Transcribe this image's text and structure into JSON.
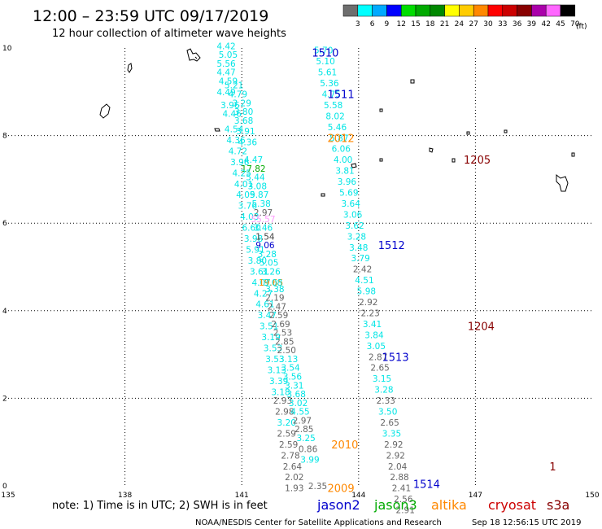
{
  "header": {
    "title": "12:00 – 23:59 UTC 09/17/2019",
    "subtitle": "12 hour collection of altimeter wave heights"
  },
  "colorbar": {
    "colors": [
      "#6e6e6e",
      "#00ffff",
      "#00aaff",
      "#0000ff",
      "#00dd00",
      "#00aa00",
      "#008800",
      "#ffff00",
      "#ffcc00",
      "#ff8800",
      "#ff0000",
      "#cc0000",
      "#880000",
      "#aa00aa",
      "#ff66ff",
      "#000000"
    ],
    "labels": [
      "3",
      "6",
      "9",
      "12",
      "15",
      "18",
      "21",
      "24",
      "27",
      "30",
      "33",
      "36",
      "39",
      "42",
      "45",
      "70"
    ],
    "unit": "(ft)"
  },
  "axes": {
    "x_ticks": [
      "135",
      "138",
      "141",
      "144",
      "147",
      "150"
    ],
    "y_ticks": [
      "0",
      "2",
      "4",
      "6",
      "8",
      "10"
    ],
    "xlim": [
      135,
      150
    ],
    "ylim": [
      0,
      10
    ]
  },
  "passes": [
    {
      "label": "1510",
      "lon": 142.8,
      "lat": 9.9,
      "color": "#0000cc"
    },
    {
      "label": "1511",
      "lon": 143.2,
      "lat": 8.95,
      "color": "#0000cc"
    },
    {
      "label": "2012",
      "lon": 143.2,
      "lat": 7.95,
      "color": "#ff8800"
    },
    {
      "label": "1205",
      "lon": 146.7,
      "lat": 7.45,
      "color": "#880000"
    },
    {
      "label": "1512",
      "lon": 144.5,
      "lat": 5.5,
      "color": "#0000cc"
    },
    {
      "label": "1204",
      "lon": 146.8,
      "lat": 3.65,
      "color": "#880000"
    },
    {
      "label": "1513",
      "lon": 144.6,
      "lat": 2.95,
      "color": "#0000cc"
    },
    {
      "label": "2010",
      "lon": 143.3,
      "lat": 0.95,
      "color": "#ff8800"
    },
    {
      "label": "2009",
      "lon": 143.2,
      "lat": -0.05,
      "color": "#ff8800"
    },
    {
      "label": "1514",
      "lon": 145.4,
      "lat": 0.05,
      "color": "#0000cc"
    },
    {
      "label": "1",
      "lon": 148.9,
      "lat": 0.45,
      "color": "#880000"
    }
  ],
  "wave_heights": [
    {
      "v": "4.42",
      "lon": 140.6,
      "lat": 10.05,
      "c": "#00e5e5"
    },
    {
      "v": "5.05",
      "lon": 140.65,
      "lat": 9.85,
      "c": "#00e5e5"
    },
    {
      "v": "5.56",
      "lon": 140.6,
      "lat": 9.65,
      "c": "#00e5e5"
    },
    {
      "v": "4.47",
      "lon": 140.6,
      "lat": 9.45,
      "c": "#00e5e5"
    },
    {
      "v": "4.59",
      "lon": 140.65,
      "lat": 9.25,
      "c": "#00e5e5"
    },
    {
      "v": "5.21",
      "lon": 140.8,
      "lat": 9.15,
      "c": "#00e5e5"
    },
    {
      "v": "4.49",
      "lon": 140.6,
      "lat": 9.0,
      "c": "#00e5e5"
    },
    {
      "v": "4.79",
      "lon": 140.9,
      "lat": 8.95,
      "c": "#00e5e5"
    },
    {
      "v": "3.96",
      "lon": 140.7,
      "lat": 8.7,
      "c": "#00e5e5"
    },
    {
      "v": "3.29",
      "lon": 141.0,
      "lat": 8.75,
      "c": "#00e5e5"
    },
    {
      "v": "4.46",
      "lon": 140.75,
      "lat": 8.5,
      "c": "#00e5e5"
    },
    {
      "v": "3.80",
      "lon": 141.05,
      "lat": 8.55,
      "c": "#00e5e5"
    },
    {
      "v": "3.68",
      "lon": 141.05,
      "lat": 8.35,
      "c": "#00e5e5"
    },
    {
      "v": "4.54",
      "lon": 140.8,
      "lat": 8.15,
      "c": "#00e5e5"
    },
    {
      "v": "3.91",
      "lon": 141.1,
      "lat": 8.1,
      "c": "#00e5e5"
    },
    {
      "v": "4.36",
      "lon": 140.85,
      "lat": 7.9,
      "c": "#00e5e5"
    },
    {
      "v": "4.36",
      "lon": 141.15,
      "lat": 7.85,
      "c": "#00e5e5"
    },
    {
      "v": "4.72",
      "lon": 140.9,
      "lat": 7.65,
      "c": "#00e5e5"
    },
    {
      "v": "3.96",
      "lon": 140.95,
      "lat": 7.4,
      "c": "#00e5e5"
    },
    {
      "v": "4.47",
      "lon": 141.3,
      "lat": 7.45,
      "c": "#00e5e5"
    },
    {
      "v": "17.82",
      "lon": 141.3,
      "lat": 7.25,
      "c": "#00aa00"
    },
    {
      "v": "4.25",
      "lon": 141.0,
      "lat": 7.15,
      "c": "#00e5e5"
    },
    {
      "v": "5.44",
      "lon": 141.35,
      "lat": 7.05,
      "c": "#00e5e5"
    },
    {
      "v": "4.01",
      "lon": 141.05,
      "lat": 6.9,
      "c": "#00e5e5"
    },
    {
      "v": "3.08",
      "lon": 141.4,
      "lat": 6.85,
      "c": "#00e5e5"
    },
    {
      "v": "4.09",
      "lon": 141.1,
      "lat": 6.65,
      "c": "#00e5e5"
    },
    {
      "v": "5.87",
      "lon": 141.45,
      "lat": 6.65,
      "c": "#00e5e5"
    },
    {
      "v": "3.76",
      "lon": 141.15,
      "lat": 6.4,
      "c": "#00e5e5"
    },
    {
      "v": "5.38",
      "lon": 141.5,
      "lat": 6.45,
      "c": "#00e5e5"
    },
    {
      "v": "2.97",
      "lon": 141.55,
      "lat": 6.25,
      "c": "#666666"
    },
    {
      "v": "4.03",
      "lon": 141.2,
      "lat": 6.15,
      "c": "#00e5e5"
    },
    {
      "v": "55.57",
      "lon": 141.55,
      "lat": 6.1,
      "c": "#ff99ff"
    },
    {
      "v": "6.60",
      "lon": 141.25,
      "lat": 5.9,
      "c": "#00e5e5"
    },
    {
      "v": "3.46",
      "lon": 141.55,
      "lat": 5.9,
      "c": "#00e5e5"
    },
    {
      "v": "3.98",
      "lon": 141.3,
      "lat": 5.65,
      "c": "#00e5e5"
    },
    {
      "v": "1.54",
      "lon": 141.6,
      "lat": 5.7,
      "c": "#444444"
    },
    {
      "v": "9.06",
      "lon": 141.6,
      "lat": 5.5,
      "c": "#0000cc"
    },
    {
      "v": "5.91",
      "lon": 141.35,
      "lat": 5.4,
      "c": "#00e5e5"
    },
    {
      "v": "3.28",
      "lon": 141.65,
      "lat": 5.3,
      "c": "#00e5e5"
    },
    {
      "v": "3.80",
      "lon": 141.4,
      "lat": 5.15,
      "c": "#00e5e5"
    },
    {
      "v": "5.05",
      "lon": 141.7,
      "lat": 5.1,
      "c": "#00e5e5"
    },
    {
      "v": "3.61",
      "lon": 141.45,
      "lat": 4.9,
      "c": "#00e5e5"
    },
    {
      "v": "3.26",
      "lon": 141.75,
      "lat": 4.9,
      "c": "#00e5e5"
    },
    {
      "v": "4.07",
      "lon": 141.5,
      "lat": 4.65,
      "c": "#00e5e5"
    },
    {
      "v": "19.65",
      "lon": 141.75,
      "lat": 4.65,
      "c": "#ff8800"
    },
    {
      "v": "3.08",
      "lon": 141.8,
      "lat": 4.65,
      "c": "#00e5e5"
    },
    {
      "v": "3.38",
      "lon": 141.85,
      "lat": 4.5,
      "c": "#00e5e5"
    },
    {
      "v": "4.27",
      "lon": 141.55,
      "lat": 4.4,
      "c": "#00e5e5"
    },
    {
      "v": "2.19",
      "lon": 141.85,
      "lat": 4.3,
      "c": "#666666"
    },
    {
      "v": "4.61",
      "lon": 141.6,
      "lat": 4.15,
      "c": "#00e5e5"
    },
    {
      "v": "2.47",
      "lon": 141.9,
      "lat": 4.1,
      "c": "#666666"
    },
    {
      "v": "3.47",
      "lon": 141.65,
      "lat": 3.9,
      "c": "#00e5e5"
    },
    {
      "v": "2.59",
      "lon": 141.95,
      "lat": 3.9,
      "c": "#666666"
    },
    {
      "v": "3.51",
      "lon": 141.7,
      "lat": 3.65,
      "c": "#00e5e5"
    },
    {
      "v": "2.69",
      "lon": 142.0,
      "lat": 3.7,
      "c": "#666666"
    },
    {
      "v": "3.19",
      "lon": 141.75,
      "lat": 3.4,
      "c": "#00e5e5"
    },
    {
      "v": "2.53",
      "lon": 142.05,
      "lat": 3.5,
      "c": "#666666"
    },
    {
      "v": "2.85",
      "lon": 142.1,
      "lat": 3.3,
      "c": "#666666"
    },
    {
      "v": "3.53",
      "lon": 141.8,
      "lat": 3.15,
      "c": "#00e5e5"
    },
    {
      "v": "2.50",
      "lon": 142.15,
      "lat": 3.1,
      "c": "#666666"
    },
    {
      "v": "3.53",
      "lon": 141.85,
      "lat": 2.9,
      "c": "#00e5e5"
    },
    {
      "v": "3.13",
      "lon": 142.2,
      "lat": 2.9,
      "c": "#00e5e5"
    },
    {
      "v": "3.13",
      "lon": 141.9,
      "lat": 2.65,
      "c": "#00e5e5"
    },
    {
      "v": "3.54",
      "lon": 142.25,
      "lat": 2.7,
      "c": "#00e5e5"
    },
    {
      "v": "3.39",
      "lon": 141.95,
      "lat": 2.4,
      "c": "#00e5e5"
    },
    {
      "v": "3.56",
      "lon": 142.3,
      "lat": 2.5,
      "c": "#00e5e5"
    },
    {
      "v": "3.31",
      "lon": 142.35,
      "lat": 2.3,
      "c": "#00e5e5"
    },
    {
      "v": "3.18",
      "lon": 142.0,
      "lat": 2.15,
      "c": "#00e5e5"
    },
    {
      "v": "3.68",
      "lon": 142.4,
      "lat": 2.1,
      "c": "#00e5e5"
    },
    {
      "v": "2.93",
      "lon": 142.05,
      "lat": 1.95,
      "c": "#666666"
    },
    {
      "v": "3.02",
      "lon": 142.45,
      "lat": 1.9,
      "c": "#00e5e5"
    },
    {
      "v": "2.98",
      "lon": 142.1,
      "lat": 1.7,
      "c": "#666666"
    },
    {
      "v": "4.55",
      "lon": 142.5,
      "lat": 1.7,
      "c": "#00e5e5"
    },
    {
      "v": "3.20",
      "lon": 142.15,
      "lat": 1.45,
      "c": "#00e5e5"
    },
    {
      "v": "2.97",
      "lon": 142.55,
      "lat": 1.5,
      "c": "#666666"
    },
    {
      "v": "2.59",
      "lon": 142.15,
      "lat": 1.2,
      "c": "#666666"
    },
    {
      "v": "2.85",
      "lon": 142.6,
      "lat": 1.3,
      "c": "#666666"
    },
    {
      "v": "3.25",
      "lon": 142.65,
      "lat": 1.1,
      "c": "#00e5e5"
    },
    {
      "v": "2.59",
      "lon": 142.2,
      "lat": 0.95,
      "c": "#666666"
    },
    {
      "v": "0.86",
      "lon": 142.7,
      "lat": 0.85,
      "c": "#666666"
    },
    {
      "v": "2.78",
      "lon": 142.25,
      "lat": 0.7,
      "c": "#666666"
    },
    {
      "v": "3.99",
      "lon": 142.75,
      "lat": 0.6,
      "c": "#00e5e5"
    },
    {
      "v": "2.64",
      "lon": 142.3,
      "lat": 0.45,
      "c": "#666666"
    },
    {
      "v": "2.02",
      "lon": 142.35,
      "lat": 0.2,
      "c": "#666666"
    },
    {
      "v": "1.93",
      "lon": 142.35,
      "lat": -0.05,
      "c": "#666666"
    },
    {
      "v": "2.35",
      "lon": 142.95,
      "lat": 0.0,
      "c": "#666666"
    },
    {
      "v": "5.70",
      "lon": 143.1,
      "lat": 9.95,
      "c": "#00e5e5"
    },
    {
      "v": "5.10",
      "lon": 143.15,
      "lat": 9.7,
      "c": "#00e5e5"
    },
    {
      "v": "5.61",
      "lon": 143.2,
      "lat": 9.45,
      "c": "#00e5e5"
    },
    {
      "v": "5.36",
      "lon": 143.25,
      "lat": 9.2,
      "c": "#00e5e5"
    },
    {
      "v": "4.75",
      "lon": 143.3,
      "lat": 8.95,
      "c": "#00e5e5"
    },
    {
      "v": "5.58",
      "lon": 143.35,
      "lat": 8.7,
      "c": "#00e5e5"
    },
    {
      "v": "8.02",
      "lon": 143.4,
      "lat": 8.45,
      "c": "#00e5e5"
    },
    {
      "v": "5.46",
      "lon": 143.45,
      "lat": 8.2,
      "c": "#00e5e5"
    },
    {
      "v": "5.87",
      "lon": 143.5,
      "lat": 7.95,
      "c": "#00e5e5"
    },
    {
      "v": "6.06",
      "lon": 143.55,
      "lat": 7.7,
      "c": "#00e5e5"
    },
    {
      "v": "4.00",
      "lon": 143.6,
      "lat": 7.45,
      "c": "#00e5e5"
    },
    {
      "v": "3.81",
      "lon": 143.65,
      "lat": 7.2,
      "c": "#00e5e5"
    },
    {
      "v": "3.96",
      "lon": 143.7,
      "lat": 6.95,
      "c": "#00e5e5"
    },
    {
      "v": "5.69",
      "lon": 143.75,
      "lat": 6.7,
      "c": "#00e5e5"
    },
    {
      "v": "3.64",
      "lon": 143.8,
      "lat": 6.45,
      "c": "#00e5e5"
    },
    {
      "v": "3.06",
      "lon": 143.85,
      "lat": 6.2,
      "c": "#00e5e5"
    },
    {
      "v": "3.62",
      "lon": 143.9,
      "lat": 5.95,
      "c": "#00e5e5"
    },
    {
      "v": "3.28",
      "lon": 143.95,
      "lat": 5.7,
      "c": "#00e5e5"
    },
    {
      "v": "3.48",
      "lon": 144.0,
      "lat": 5.45,
      "c": "#00e5e5"
    },
    {
      "v": "3.79",
      "lon": 144.05,
      "lat": 5.2,
      "c": "#00e5e5"
    },
    {
      "v": "2.42",
      "lon": 144.1,
      "lat": 4.95,
      "c": "#666666"
    },
    {
      "v": "4.51",
      "lon": 144.15,
      "lat": 4.7,
      "c": "#00e5e5"
    },
    {
      "v": "5.98",
      "lon": 144.2,
      "lat": 4.45,
      "c": "#00e5e5"
    },
    {
      "v": "2.92",
      "lon": 144.25,
      "lat": 4.2,
      "c": "#666666"
    },
    {
      "v": "2.23",
      "lon": 144.3,
      "lat": 3.95,
      "c": "#666666"
    },
    {
      "v": "3.41",
      "lon": 144.35,
      "lat": 3.7,
      "c": "#00e5e5"
    },
    {
      "v": "3.84",
      "lon": 144.4,
      "lat": 3.45,
      "c": "#00e5e5"
    },
    {
      "v": "3.05",
      "lon": 144.45,
      "lat": 3.2,
      "c": "#00e5e5"
    },
    {
      "v": "2.87",
      "lon": 144.5,
      "lat": 2.95,
      "c": "#666666"
    },
    {
      "v": "2.65",
      "lon": 144.55,
      "lat": 2.7,
      "c": "#666666"
    },
    {
      "v": "3.15",
      "lon": 144.6,
      "lat": 2.45,
      "c": "#00e5e5"
    },
    {
      "v": "3.28",
      "lon": 144.65,
      "lat": 2.2,
      "c": "#00e5e5"
    },
    {
      "v": "2.33",
      "lon": 144.7,
      "lat": 1.95,
      "c": "#666666"
    },
    {
      "v": "3.50",
      "lon": 144.75,
      "lat": 1.7,
      "c": "#00e5e5"
    },
    {
      "v": "2.65",
      "lon": 144.8,
      "lat": 1.45,
      "c": "#666666"
    },
    {
      "v": "3.35",
      "lon": 144.85,
      "lat": 1.2,
      "c": "#00e5e5"
    },
    {
      "v": "2.92",
      "lon": 144.9,
      "lat": 0.95,
      "c": "#666666"
    },
    {
      "v": "2.92",
      "lon": 144.95,
      "lat": 0.7,
      "c": "#666666"
    },
    {
      "v": "2.04",
      "lon": 145.0,
      "lat": 0.45,
      "c": "#666666"
    },
    {
      "v": "2.88",
      "lon": 145.05,
      "lat": 0.2,
      "c": "#666666"
    },
    {
      "v": "2.41",
      "lon": 145.1,
      "lat": -0.05,
      "c": "#666666"
    },
    {
      "v": "2.56",
      "lon": 145.15,
      "lat": -0.3,
      "c": "#666666"
    },
    {
      "v": "2.91",
      "lon": 145.2,
      "lat": -0.55,
      "c": "#666666"
    }
  ],
  "footer": {
    "note": "note: 1) Time is in UTC; 2) SWH is in feet",
    "legend": [
      {
        "name": "jason2",
        "color": "#0000cc"
      },
      {
        "name": "jason3",
        "color": "#00aa00"
      },
      {
        "name": "altika",
        "color": "#ff8800"
      },
      {
        "name": "cryosat",
        "color": "#cc0000"
      },
      {
        "name": "s3a",
        "color": "#880000"
      }
    ],
    "credit": "NOAA/NESDIS Center for Satellite Applications and Research",
    "timestamp": "Sep 18 12:56:15 UTC 2019"
  }
}
